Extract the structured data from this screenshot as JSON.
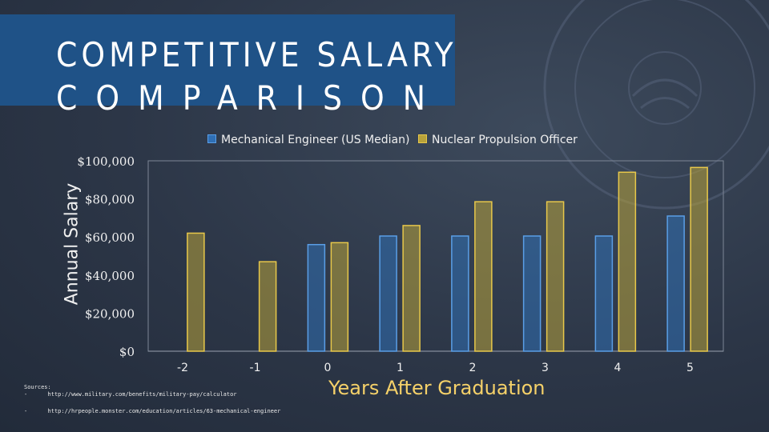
{
  "slide": {
    "title_line1": "COMPETITIVE SALARY",
    "title_line2": "COMPARISON"
  },
  "chart_data": {
    "type": "bar",
    "categories": [
      "-2",
      "-1",
      "0",
      "1",
      "2",
      "3",
      "4",
      "5"
    ],
    "series": [
      {
        "name": "Mechanical Engineer (US Median)",
        "values": [
          null,
          null,
          56000,
          60500,
          60500,
          60500,
          60500,
          71000
        ],
        "color": "#2f6fb5"
      },
      {
        "name": "Nuclear Propulsion Officer",
        "values": [
          62000,
          47000,
          57000,
          66000,
          78500,
          78500,
          94000,
          96500
        ],
        "color": "#b8a23a"
      }
    ],
    "ylim": [
      0,
      100000
    ],
    "yticks": [
      "$0",
      "$20,000",
      "$40,000",
      "$60,000",
      "$80,000",
      "$100,000"
    ],
    "ylabel": "Annual Salary",
    "xlabel": "Years After Graduation",
    "legend": "top"
  },
  "sources": {
    "heading": "Sources:",
    "items": [
      {
        "bullet": "-",
        "text": "http://www.military.com/benefits/military-pay/calculator"
      },
      {
        "bullet": "-",
        "text": "http://hrpeople.monster.com/education/articles/63-mechanical-engineer"
      }
    ]
  },
  "colors": {
    "title_bg": "#1f5287",
    "accent_text": "#f5d169"
  }
}
